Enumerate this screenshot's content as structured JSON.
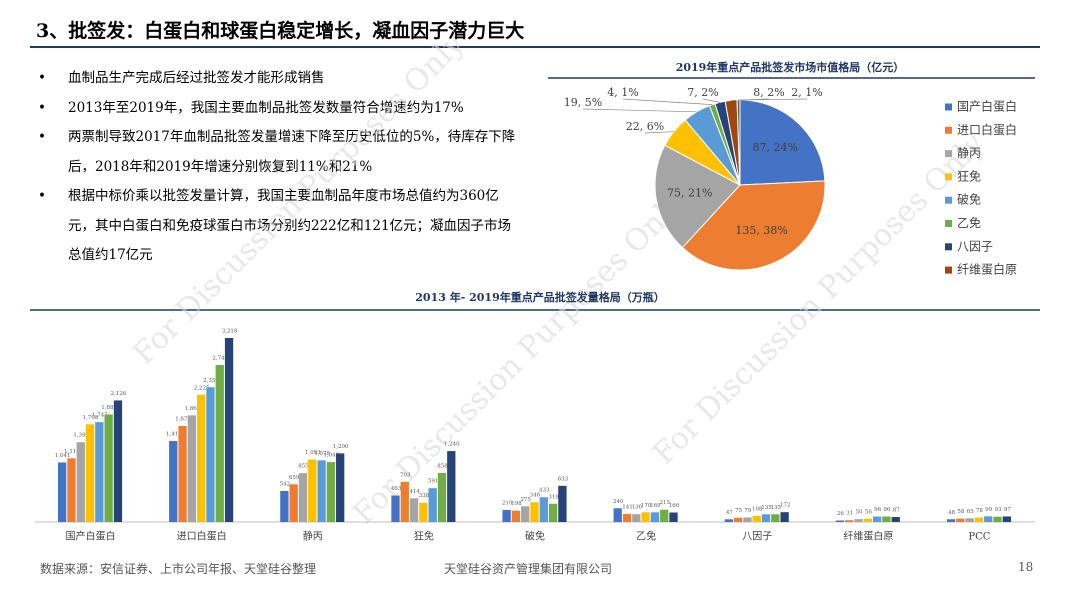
{
  "header": {
    "title": "3、批签发：白蛋白和球蛋白稳定增长，凝血因子潜力巨大"
  },
  "bullets": [
    "血制品生产完成后经过批签发才能形成销售",
    "2013年至2019年，我国主要血制品批签发数量符合增速约为17%",
    "两票制导致2017年血制品批签发量增速下降至历史低位的5%，待库存下降后，2018年和2019年增速分别恢复到11%和21%",
    "根据中标价乘以批签发量计算，我国主要血制品年度市场总值约为360亿元，其中白蛋白和免疫球蛋白市场分别约222亿和121亿元；凝血因子市场总值约17亿元"
  ],
  "watermark": "For Discussion Purposes Only",
  "footer": {
    "source": "数据来源：安信证券、上市公司年报、天堂硅谷整理",
    "company": "天堂硅谷资产管理集团有限公司",
    "page": 18
  },
  "chart_data": [
    {
      "type": "pie",
      "title": "2019年重点产品批签发市场市值格局（亿元）",
      "categories": [
        "国产白蛋白",
        "进口白蛋白",
        "静丙",
        "狂免",
        "破免",
        "乙免",
        "八因子",
        "纤维蛋白原",
        null
      ],
      "values": [
        87,
        135,
        75,
        22,
        19,
        4,
        7,
        8,
        2
      ],
      "value_labels": [
        "87, 24%",
        "135, 38%",
        "75, 21%",
        "22, 6%",
        "19, 5%",
        "4, 1%",
        "7, 2%",
        "8, 2%",
        "2, 1%"
      ],
      "colors": [
        "#4472c4",
        "#ed7d31",
        "#a5a5a5",
        "#ffc000",
        "#5b9bd5",
        "#70ad47",
        "#264478",
        "#9e480e",
        "#636363"
      ],
      "legend": "right"
    },
    {
      "type": "bar",
      "title": "2013 年- 2019年重点产品批签发量格局（万瓶）",
      "categories": [
        "国产白蛋白",
        "进口白蛋白",
        "静丙",
        "狂免",
        "破免",
        "乙免",
        "八因子",
        "纤维蛋白原",
        "PCC"
      ],
      "series": [
        {
          "color": "#4472c4",
          "values": [
            1041,
            1416,
            542,
            463,
            210,
            240,
            47,
            26,
            48
          ],
          "value_labels": [
            "1,041",
            "1,416",
            "542",
            "463",
            "210",
            "240",
            "47",
            "26",
            "48"
          ]
        },
        {
          "color": "#ed7d31",
          "values": [
            1114,
            1679,
            659,
            703,
            198,
            141,
            75,
            31,
            58
          ],
          "value_labels": [
            "1,114",
            "1,679",
            "659",
            "703",
            "198",
            "141",
            "75",
            "31",
            "58"
          ]
        },
        {
          "color": "#a5a5a5",
          "values": [
            1395,
            1865,
            855,
            414,
            275,
            136,
            79,
            50,
            65
          ],
          "value_labels": [
            "1,395",
            "1,865",
            "855",
            "414",
            "275",
            "136",
            "79",
            "50",
            "65"
          ]
        },
        {
          "color": "#ffc000",
          "values": [
            1708,
            2225,
            1093,
            338,
            346,
            170,
            108,
            56,
            78
          ],
          "value_labels": [
            "1,708",
            "2,225",
            "1,093",
            "338",
            "346",
            "170",
            "108",
            "56",
            "78"
          ]
        },
        {
          "color": "#5b9bd5",
          "values": [
            1747,
            2356,
            1078,
            591,
            433,
            169,
            135,
            96,
            99
          ],
          "value_labels": [
            "1,747",
            "2,356",
            "1,078",
            "591",
            "433",
            "169",
            "135",
            "96",
            "99"
          ]
        },
        {
          "color": "#70ad47",
          "values": [
            1881,
            2746,
            1048,
            858,
            319,
            215,
            135,
            96,
            93
          ],
          "value_labels": [
            "1,881",
            "2,746",
            "1,048",
            "858",
            "319",
            "215",
            "135",
            "96",
            "93"
          ]
        },
        {
          "color": "#264478",
          "values": [
            2126,
            3218,
            1200,
            1240,
            633,
            166,
            172,
            87,
            97
          ],
          "value_labels": [
            "2,126",
            "3,218",
            "1,200",
            "1,240",
            "633",
            "166",
            "172",
            "87",
            "97"
          ]
        }
      ]
    }
  ]
}
